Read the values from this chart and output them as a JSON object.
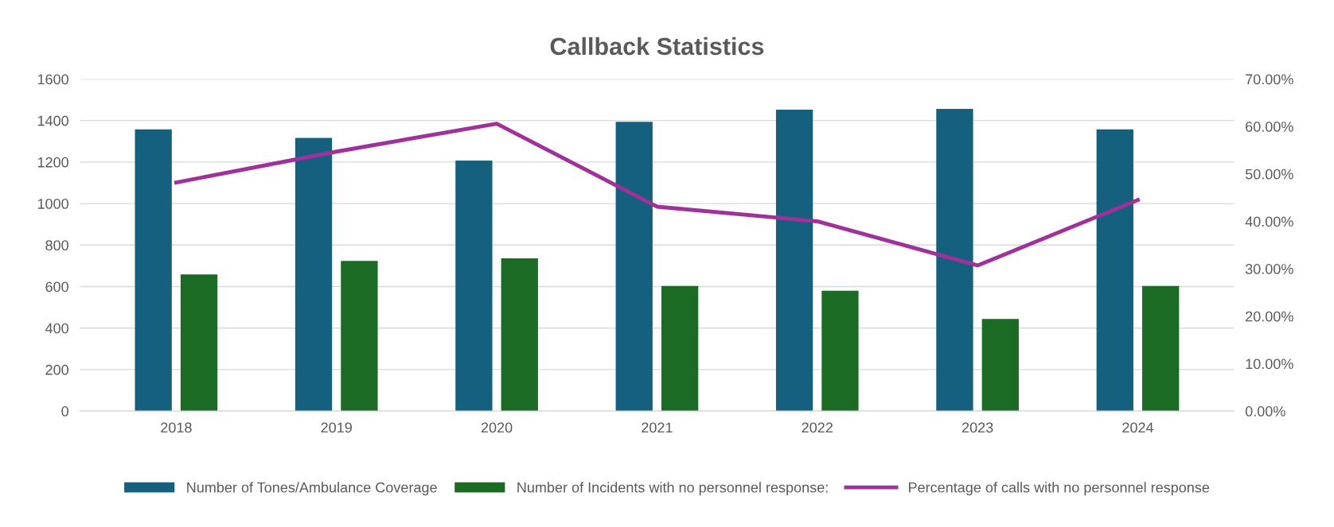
{
  "chart_data": {
    "type": "bar",
    "title": "Callback Statistics",
    "categories": [
      "2018",
      "2019",
      "2020",
      "2021",
      "2022",
      "2023",
      "2024"
    ],
    "series": [
      {
        "name": "Number of Tones/Ambulance Coverage",
        "color": "#16607f",
        "values": [
          1358,
          1316,
          1207,
          1394,
          1452,
          1456,
          1358
        ]
      },
      {
        "name": "Number of Incidents with no personnel response:",
        "color": "#1b6b25",
        "values": [
          658,
          724,
          736,
          603,
          580,
          444,
          603
        ]
      },
      {
        "name": "Percentage of calls with no personnel response",
        "color": "#a0309a",
        "type": "line",
        "axis": "y2",
        "values": [
          48.2,
          54.7,
          60.6,
          43.1,
          40.0,
          30.7,
          44.5
        ]
      }
    ],
    "ylim": [
      0,
      1600
    ],
    "yticks": [
      0,
      200,
      400,
      600,
      800,
      1000,
      1200,
      1400,
      1600
    ],
    "y2lim": [
      0,
      70
    ],
    "y2ticks": [
      {
        "value": 0,
        "label": "0.00%"
      },
      {
        "value": 10,
        "label": "10.00%"
      },
      {
        "value": 20,
        "label": "20.00%"
      },
      {
        "value": 30,
        "label": "30.00%"
      },
      {
        "value": 40,
        "label": "40.00%"
      },
      {
        "value": 50,
        "label": "50.00%"
      },
      {
        "value": 60,
        "label": "60.00%"
      },
      {
        "value": 70,
        "label": "70.00%"
      }
    ],
    "grid": "y",
    "legend": "bottom",
    "marker": "none",
    "line_style": "solid"
  }
}
